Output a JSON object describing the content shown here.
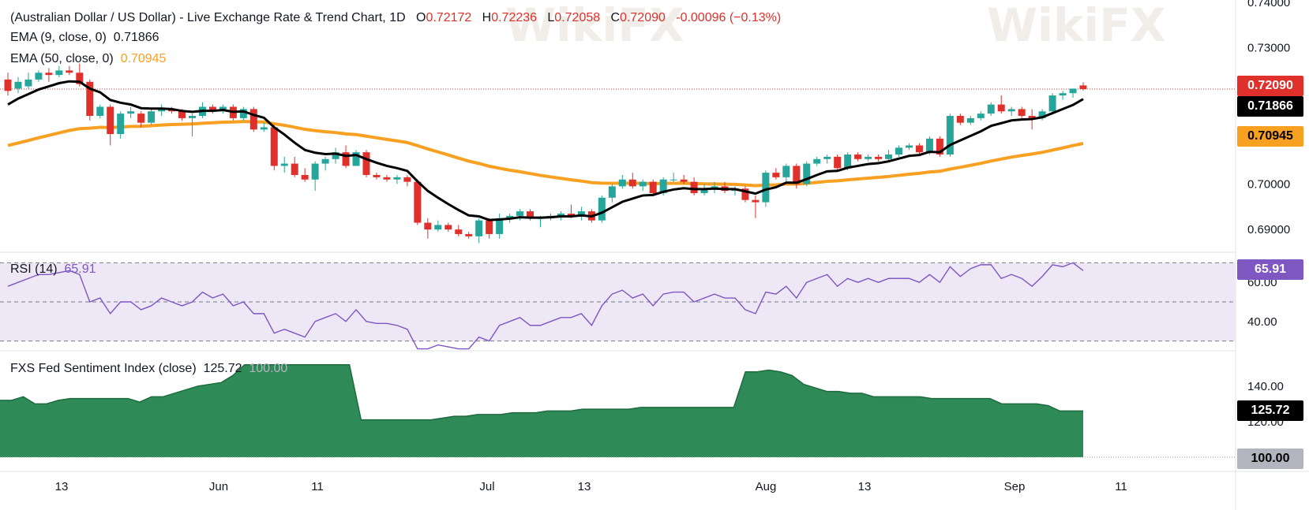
{
  "header": {
    "title": "(Australian Dollar / US Dollar) - Live Exchange Rate & Trend Chart, 1D",
    "open_label": "O",
    "open": "0.72172",
    "high_label": "H",
    "high": "0.72236",
    "low_label": "L",
    "low": "0.72058",
    "close_label": "C",
    "close": "0.72090",
    "change": "-0.00096 (−0.13%)",
    "ema9_label": "EMA (9, close, 0)",
    "ema9_value": "0.71866",
    "ema50_label": "EMA (50, close, 0)",
    "ema50_value": "0.70945"
  },
  "rsi_panel": {
    "label": "RSI (14)",
    "value": "65.91"
  },
  "fxs_panel": {
    "label": "FXS Fed Sentiment Index (close)",
    "value": "125.72",
    "value2": "100.00"
  },
  "badges": {
    "close": "0.72090",
    "ema9": "0.71866",
    "ema50": "0.70945",
    "rsi": "65.91",
    "fxs": "125.72",
    "fxs_base": "100.00"
  },
  "watermark": "WikiFX",
  "colors": {
    "up": "#26a69a",
    "down": "#e0302b",
    "ema9": "#000000",
    "ema50": "#f7a021",
    "rsi_line": "#7e57c2",
    "rsi_band": "#ede7f6",
    "fxs_fill": "#2e8b57",
    "fxs_line": "#1e6b3e"
  },
  "chart_data": [
    {
      "type": "candlestick",
      "title": "(Australian Dollar / US Dollar) - Live Exchange Rate & Trend Chart, 1D",
      "x_tick_labels": [
        "13",
        "Jun",
        "11",
        "Jul",
        "13",
        "Aug",
        "13",
        "Sep",
        "11"
      ],
      "y_tick_labels": [
        "0.69000",
        "0.70000",
        "0.72000",
        "0.73000",
        "0.74000"
      ],
      "ylim": [
        0.685,
        0.7405
      ],
      "last_close": 0.7209,
      "candles": [
        [
          0.723,
          0.7245,
          0.7195,
          0.7205
        ],
        [
          0.721,
          0.7235,
          0.72,
          0.7225
        ],
        [
          0.7215,
          0.7245,
          0.721,
          0.723
        ],
        [
          0.723,
          0.725,
          0.7225,
          0.7245
        ],
        [
          0.7245,
          0.7255,
          0.7225,
          0.724
        ],
        [
          0.724,
          0.726,
          0.7235,
          0.725
        ],
        [
          0.725,
          0.726,
          0.724,
          0.7245
        ],
        [
          0.7245,
          0.7265,
          0.7215,
          0.722
        ],
        [
          0.7225,
          0.723,
          0.714,
          0.715
        ],
        [
          0.715,
          0.7175,
          0.7145,
          0.717
        ],
        [
          0.717,
          0.7175,
          0.7085,
          0.711
        ],
        [
          0.711,
          0.716,
          0.71,
          0.7155
        ],
        [
          0.7155,
          0.717,
          0.7145,
          0.716
        ],
        [
          0.7155,
          0.716,
          0.7125,
          0.7135
        ],
        [
          0.7135,
          0.7165,
          0.713,
          0.716
        ],
        [
          0.716,
          0.7175,
          0.715,
          0.7165
        ],
        [
          0.7165,
          0.717,
          0.7155,
          0.716
        ],
        [
          0.716,
          0.7165,
          0.714,
          0.7145
        ],
        [
          0.7145,
          0.7155,
          0.7105,
          0.715
        ],
        [
          0.715,
          0.718,
          0.7145,
          0.717
        ],
        [
          0.717,
          0.7175,
          0.7155,
          0.716
        ],
        [
          0.716,
          0.7175,
          0.7155,
          0.717
        ],
        [
          0.717,
          0.7175,
          0.714,
          0.7145
        ],
        [
          0.7145,
          0.717,
          0.714,
          0.7165
        ],
        [
          0.7165,
          0.717,
          0.7115,
          0.712
        ],
        [
          0.712,
          0.7135,
          0.7115,
          0.7125
        ],
        [
          0.7125,
          0.713,
          0.703,
          0.704
        ],
        [
          0.704,
          0.706,
          0.7025,
          0.7045
        ],
        [
          0.7045,
          0.706,
          0.7015,
          0.702
        ],
        [
          0.702,
          0.7035,
          0.7005,
          0.701
        ],
        [
          0.701,
          0.705,
          0.6985,
          0.7045
        ],
        [
          0.7045,
          0.706,
          0.703,
          0.7055
        ],
        [
          0.7055,
          0.708,
          0.7045,
          0.707
        ],
        [
          0.707,
          0.7085,
          0.7035,
          0.704
        ],
        [
          0.704,
          0.7075,
          0.704,
          0.707
        ],
        [
          0.707,
          0.7075,
          0.7015,
          0.702
        ],
        [
          0.702,
          0.7025,
          0.701,
          0.7015
        ],
        [
          0.7015,
          0.702,
          0.7005,
          0.701
        ],
        [
          0.701,
          0.702,
          0.7,
          0.7015
        ],
        [
          0.7015,
          0.702,
          0.6995,
          0.7005
        ],
        [
          0.7005,
          0.701,
          0.691,
          0.6915
        ],
        [
          0.6915,
          0.6925,
          0.688,
          0.69
        ],
        [
          0.69,
          0.692,
          0.6895,
          0.691
        ],
        [
          0.691,
          0.6915,
          0.6895,
          0.69
        ],
        [
          0.69,
          0.691,
          0.6885,
          0.689
        ],
        [
          0.689,
          0.6895,
          0.688,
          0.6885
        ],
        [
          0.6885,
          0.6925,
          0.687,
          0.692
        ],
        [
          0.692,
          0.6925,
          0.688,
          0.689
        ],
        [
          0.689,
          0.6935,
          0.688,
          0.6925
        ],
        [
          0.6925,
          0.6935,
          0.6915,
          0.693
        ],
        [
          0.693,
          0.6945,
          0.692,
          0.694
        ],
        [
          0.694,
          0.6945,
          0.692,
          0.6925
        ],
        [
          0.6925,
          0.693,
          0.6905,
          0.6925
        ],
        [
          0.6925,
          0.6935,
          0.692,
          0.693
        ],
        [
          0.693,
          0.694,
          0.692,
          0.6935
        ],
        [
          0.6935,
          0.6955,
          0.6925,
          0.693
        ],
        [
          0.693,
          0.695,
          0.692,
          0.694
        ],
        [
          0.694,
          0.6945,
          0.6915,
          0.692
        ],
        [
          0.692,
          0.6975,
          0.6915,
          0.697
        ],
        [
          0.697,
          0.7,
          0.696,
          0.6995
        ],
        [
          0.6995,
          0.702,
          0.699,
          0.701
        ],
        [
          0.701,
          0.7025,
          0.699,
          0.6995
        ],
        [
          0.6995,
          0.701,
          0.6985,
          0.7005
        ],
        [
          0.7005,
          0.701,
          0.6975,
          0.698
        ],
        [
          0.698,
          0.7015,
          0.6975,
          0.701
        ],
        [
          0.701,
          0.7025,
          0.7005,
          0.701
        ],
        [
          0.701,
          0.702,
          0.7,
          0.7005
        ],
        [
          0.7005,
          0.7015,
          0.6975,
          0.698
        ],
        [
          0.698,
          0.7,
          0.6975,
          0.699
        ],
        [
          0.699,
          0.7005,
          0.698,
          0.6995
        ],
        [
          0.6995,
          0.7005,
          0.698,
          0.6985
        ],
        [
          0.6985,
          0.6995,
          0.6975,
          0.699
        ],
        [
          0.699,
          0.6995,
          0.696,
          0.6965
        ],
        [
          0.6965,
          0.6975,
          0.6925,
          0.696
        ],
        [
          0.696,
          0.703,
          0.695,
          0.7025
        ],
        [
          0.7025,
          0.7035,
          0.701,
          0.7015
        ],
        [
          0.7015,
          0.7045,
          0.7005,
          0.704
        ],
        [
          0.704,
          0.7045,
          0.699,
          0.7
        ],
        [
          0.7,
          0.705,
          0.6995,
          0.7045
        ],
        [
          0.7045,
          0.706,
          0.704,
          0.7055
        ],
        [
          0.7055,
          0.7065,
          0.7045,
          0.706
        ],
        [
          0.706,
          0.7065,
          0.703,
          0.7035
        ],
        [
          0.7035,
          0.707,
          0.703,
          0.7065
        ],
        [
          0.7065,
          0.707,
          0.705,
          0.7055
        ],
        [
          0.7055,
          0.7065,
          0.705,
          0.706
        ],
        [
          0.706,
          0.7065,
          0.705,
          0.7055
        ],
        [
          0.7055,
          0.7075,
          0.705,
          0.7065
        ],
        [
          0.7065,
          0.7085,
          0.706,
          0.708
        ],
        [
          0.708,
          0.709,
          0.7075,
          0.7085
        ],
        [
          0.7085,
          0.709,
          0.7065,
          0.707
        ],
        [
          0.707,
          0.7105,
          0.7065,
          0.71
        ],
        [
          0.71,
          0.7105,
          0.706,
          0.7065
        ],
        [
          0.7065,
          0.7155,
          0.706,
          0.715
        ],
        [
          0.715,
          0.7155,
          0.713,
          0.7135
        ],
        [
          0.7135,
          0.715,
          0.713,
          0.7145
        ],
        [
          0.7145,
          0.716,
          0.714,
          0.7155
        ],
        [
          0.7155,
          0.718,
          0.715,
          0.7175
        ],
        [
          0.7175,
          0.7195,
          0.7155,
          0.716
        ],
        [
          0.716,
          0.717,
          0.715,
          0.7165
        ],
        [
          0.7165,
          0.717,
          0.7145,
          0.715
        ],
        [
          0.715,
          0.7165,
          0.712,
          0.7145
        ],
        [
          0.7145,
          0.7165,
          0.714,
          0.716
        ],
        [
          0.716,
          0.72,
          0.7155,
          0.7195
        ],
        [
          0.7195,
          0.7205,
          0.7185,
          0.72
        ],
        [
          0.72,
          0.721,
          0.719,
          0.721
        ],
        [
          0.7217,
          0.7224,
          0.7206,
          0.7209
        ]
      ],
      "ema9": [
        0.7175,
        0.7188,
        0.7198,
        0.7208,
        0.7215,
        0.7222,
        0.7226,
        0.7225,
        0.721,
        0.7202,
        0.7185,
        0.7179,
        0.7175,
        0.7167,
        0.7166,
        0.7166,
        0.7165,
        0.7161,
        0.7159,
        0.7161,
        0.7161,
        0.7163,
        0.7159,
        0.716,
        0.7152,
        0.7146,
        0.7125,
        0.7109,
        0.7091,
        0.7075,
        0.7069,
        0.7066,
        0.7067,
        0.7062,
        0.7064,
        0.7055,
        0.7047,
        0.704,
        0.7035,
        0.7029,
        0.7006,
        0.6985,
        0.697,
        0.6956,
        0.6943,
        0.6931,
        0.6929,
        0.6921,
        0.6922,
        0.6924,
        0.6927,
        0.6926,
        0.6926,
        0.6927,
        0.6929,
        0.6929,
        0.6931,
        0.6929,
        0.6937,
        0.6949,
        0.6961,
        0.6968,
        0.6975,
        0.6976,
        0.6983,
        0.6988,
        0.6991,
        0.6989,
        0.6989,
        0.699,
        0.6989,
        0.6989,
        0.6984,
        0.6979,
        0.6988,
        0.6993,
        0.7003,
        0.7003,
        0.7011,
        0.702,
        0.7028,
        0.7029,
        0.7036,
        0.704,
        0.7044,
        0.7046,
        0.705,
        0.7056,
        0.7062,
        0.7064,
        0.7071,
        0.707,
        0.7086,
        0.7096,
        0.7106,
        0.7116,
        0.7128,
        0.7134,
        0.714,
        0.7142,
        0.7143,
        0.7147,
        0.7156,
        0.7165,
        0.7174,
        0.7187
      ]
    },
    {
      "type": "line",
      "title": "RSI (14)",
      "y_tick_labels": [
        "40.00",
        "60.00"
      ],
      "ylim": [
        25,
        75
      ],
      "last_value": 65.91,
      "values": [
        58,
        60,
        62,
        64,
        64,
        65,
        66,
        64,
        50,
        52,
        44,
        50,
        50,
        46,
        48,
        52,
        50,
        48,
        50,
        55,
        52,
        54,
        48,
        50,
        44,
        44,
        34,
        36,
        34,
        32,
        40,
        42,
        44,
        40,
        46,
        40,
        39,
        39,
        38,
        36,
        26,
        26,
        28,
        27,
        26,
        26,
        32,
        30,
        38,
        40,
        42,
        38,
        38,
        40,
        42,
        42,
        44,
        38,
        48,
        54,
        56,
        52,
        54,
        48,
        54,
        55,
        55,
        50,
        52,
        54,
        52,
        52,
        46,
        44,
        55,
        54,
        58,
        52,
        60,
        62,
        64,
        58,
        62,
        60,
        62,
        60,
        62,
        62,
        62,
        60,
        64,
        60,
        68,
        63,
        67,
        69,
        69,
        62,
        64,
        62,
        58,
        63,
        69,
        68,
        70,
        66
      ]
    },
    {
      "type": "area",
      "title": "FXS Fed Sentiment Index (close)",
      "y_tick_labels": [
        "120.00",
        "140.00"
      ],
      "ylim": [
        100,
        155
      ],
      "last_value": 125.72,
      "reference_value": 100.0,
      "values": [
        132,
        132,
        134,
        130,
        130,
        132,
        133,
        133,
        133,
        133,
        133,
        133,
        131,
        134,
        134,
        136,
        138,
        140,
        141,
        142,
        146,
        152,
        152,
        152,
        152,
        152,
        152,
        152,
        152,
        152,
        152,
        121,
        121,
        121,
        121,
        121,
        121,
        121,
        122,
        123,
        123,
        124,
        124,
        124,
        125,
        125,
        125,
        126,
        126,
        126,
        127,
        127,
        127,
        127,
        127,
        128,
        128,
        128,
        128,
        128,
        128,
        128,
        128,
        128,
        148,
        148,
        149,
        148,
        146,
        141,
        139,
        137,
        137,
        136,
        136,
        134,
        134,
        134,
        134,
        134,
        133,
        133,
        133,
        133,
        133,
        133,
        130,
        130,
        130,
        130,
        129,
        126,
        126,
        126
      ]
    }
  ]
}
